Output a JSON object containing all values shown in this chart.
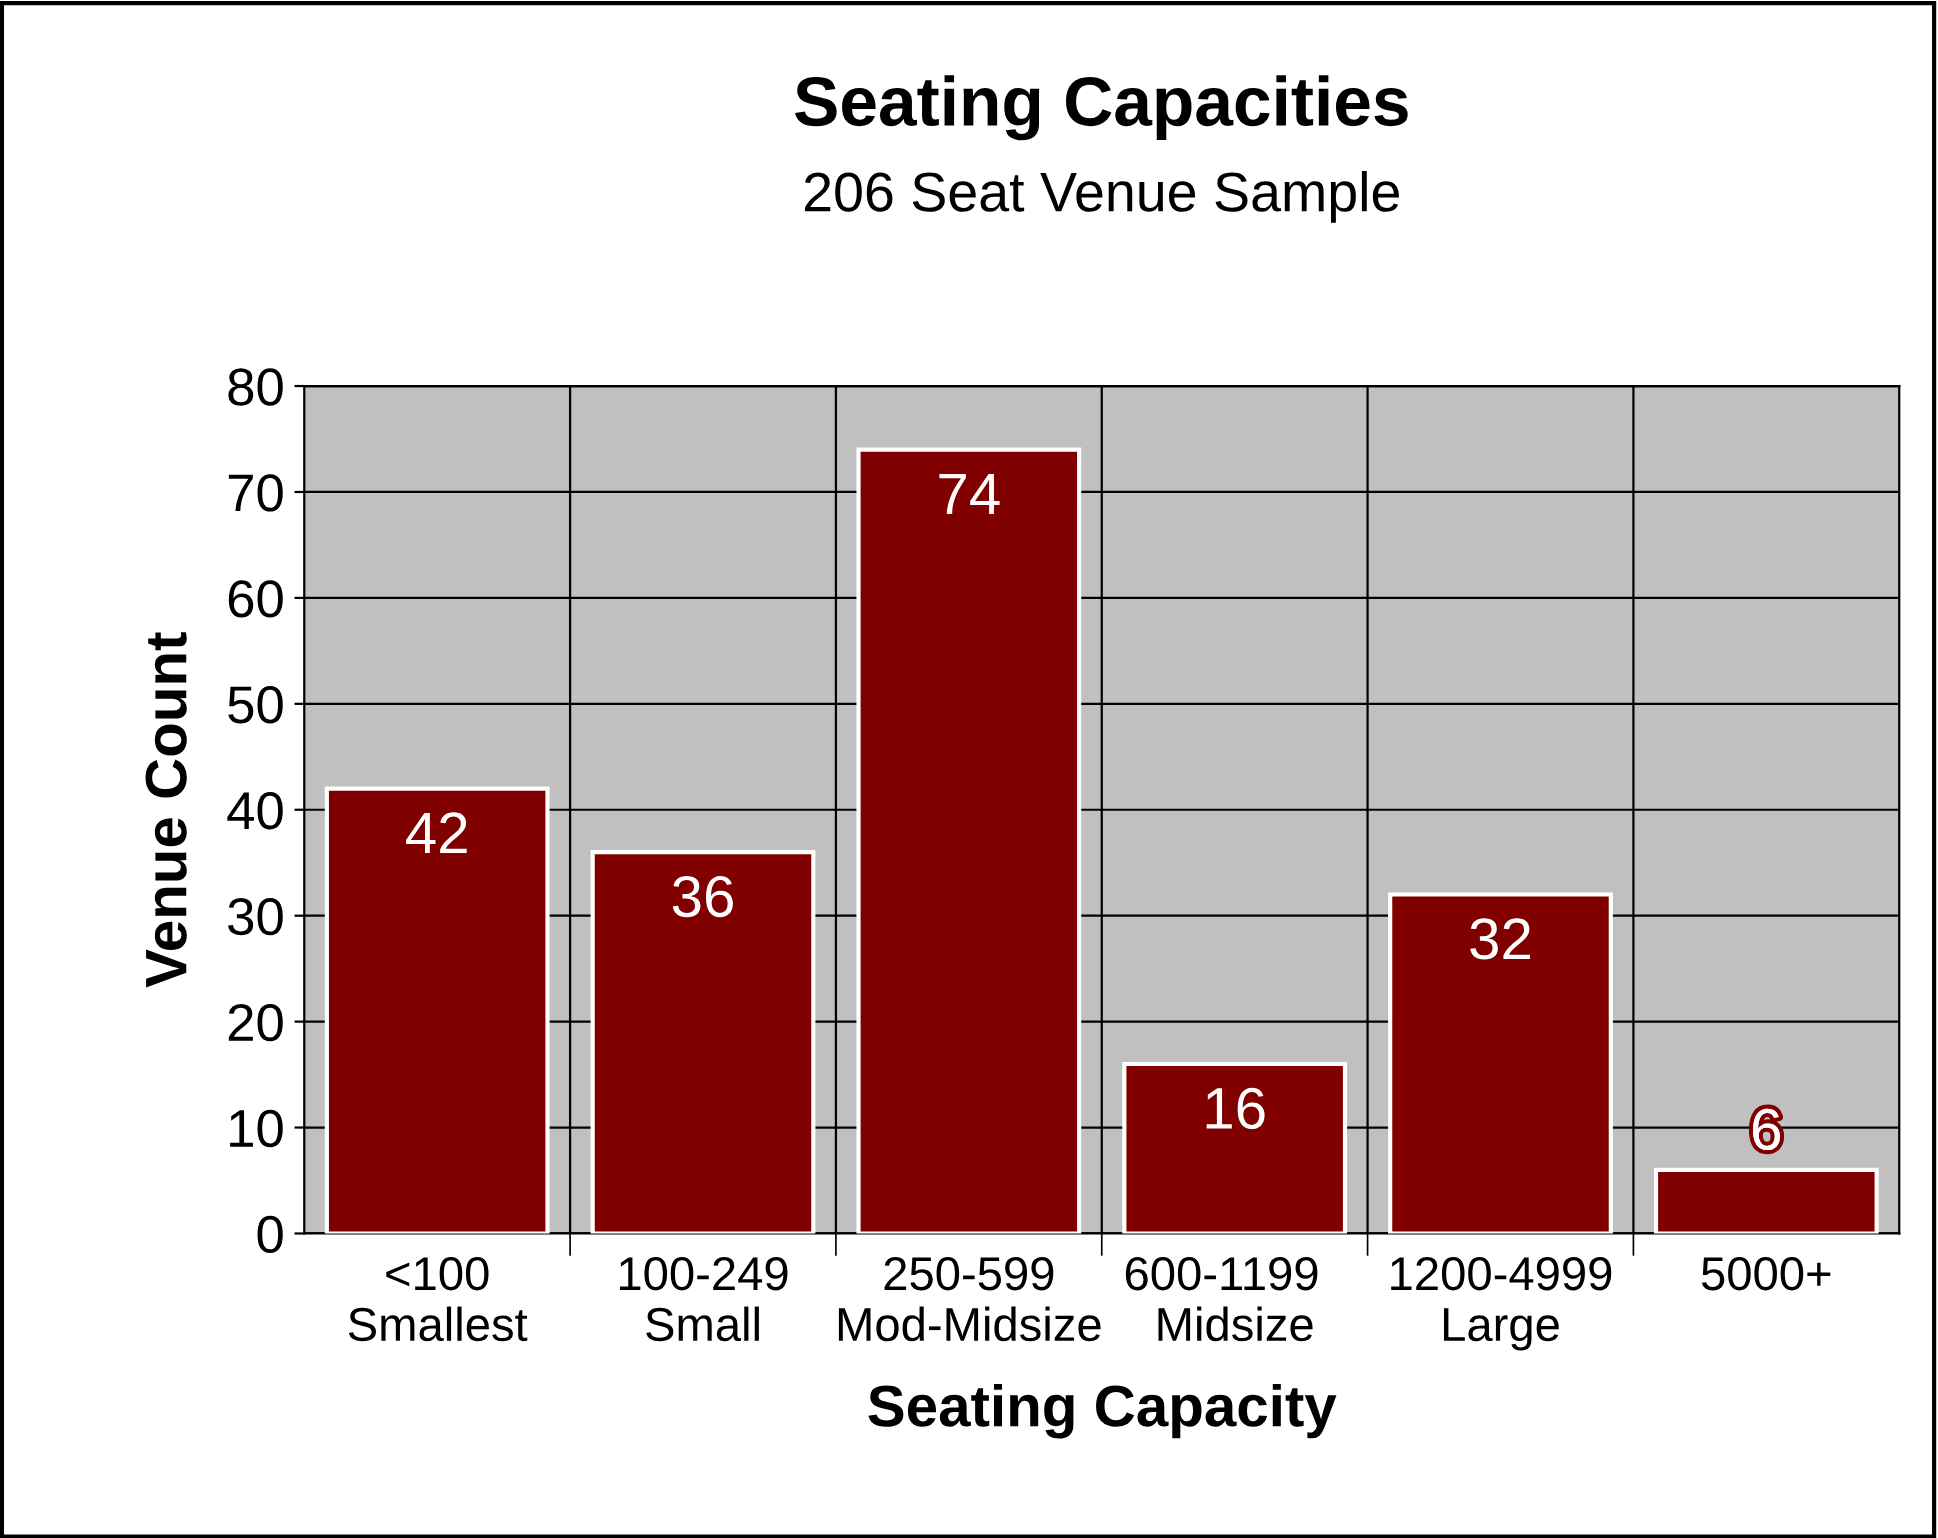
{
  "chart_data": {
    "type": "bar",
    "title": "Seating Capacities",
    "subtitle": "206 Seat Venue Sample",
    "xlabel": "Seating Capacity",
    "ylabel": "Venue Count",
    "categories": [
      "<100\nSmallest",
      "100-249\nSmall",
      "250-599\nMod-Midsize",
      "600-1199  \nMidsize",
      "1200-4999\nLarge",
      "5000+"
    ],
    "values": [
      42,
      36,
      74,
      16,
      32,
      6
    ],
    "color": "#800000",
    "ylim": [
      0,
      80
    ],
    "yticks": [
      0,
      10,
      20,
      30,
      40,
      50,
      60,
      70,
      80
    ],
    "grid": true,
    "data_labels": true,
    "legend": false
  }
}
